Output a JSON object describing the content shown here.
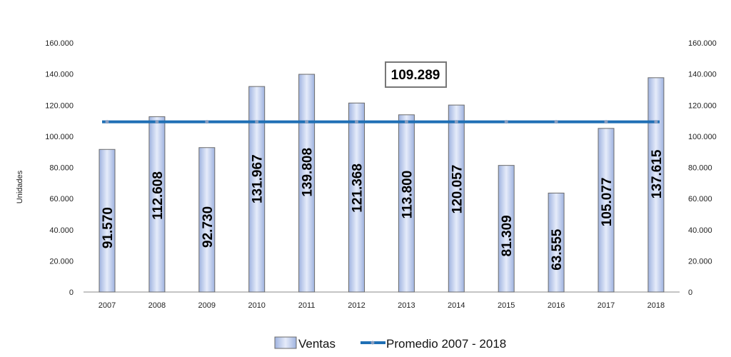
{
  "chart_data": {
    "type": "bar",
    "ylabel": "Unidades",
    "categories": [
      "2007",
      "2008",
      "2009",
      "2010",
      "2011",
      "2012",
      "2013",
      "2014",
      "2015",
      "2016",
      "2017",
      "2018"
    ],
    "series": [
      {
        "name": "Ventas",
        "values": [
          91570,
          112608,
          92730,
          131967,
          139808,
          121368,
          113800,
          120057,
          81309,
          63555,
          105077,
          137615
        ],
        "labels": [
          "91.570",
          "112.608",
          "92.730",
          "131.967",
          "139.808",
          "121.368",
          "113.800",
          "120.057",
          "81.309",
          "63.555",
          "105.077",
          "137.615"
        ],
        "color": "#b8c8ec"
      },
      {
        "name": "Promedio 2007 - 2018",
        "type": "line",
        "value": 109289,
        "color": "#1f6fb5"
      }
    ],
    "average_label": "109.289",
    "ylim": [
      0,
      160000
    ],
    "yticks": [
      0,
      20000,
      40000,
      60000,
      80000,
      100000,
      120000,
      140000,
      160000
    ],
    "ytick_labels": [
      "0",
      "20.000",
      "40.000",
      "60.000",
      "80.000",
      "100.000",
      "120.000",
      "140.000",
      "160.000"
    ],
    "secondary_axis": true,
    "grid": false,
    "legend_position": "bottom"
  }
}
